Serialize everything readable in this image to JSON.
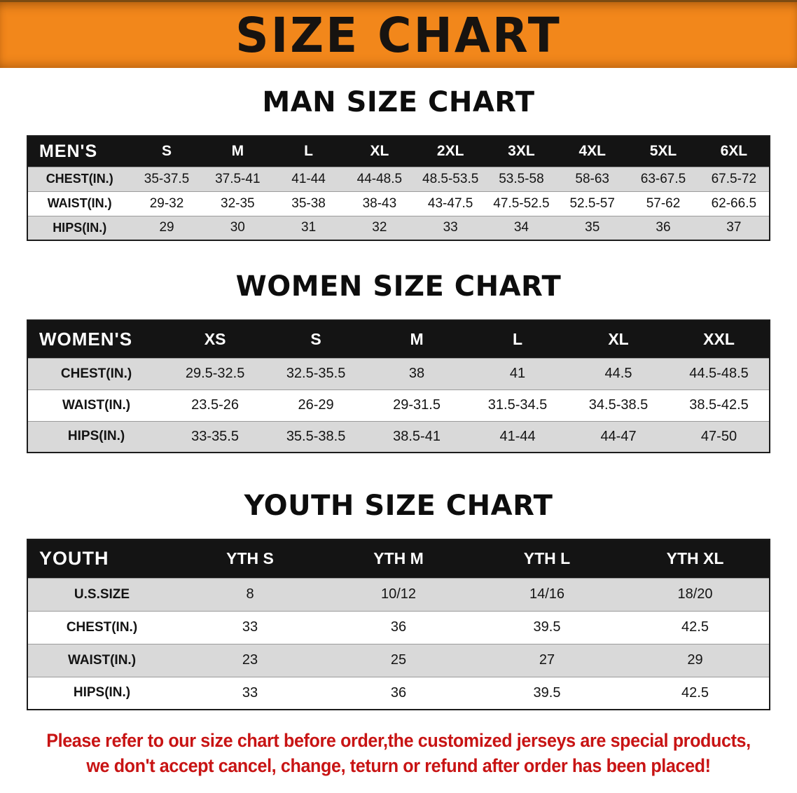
{
  "banner": {
    "title": "SIZE CHART"
  },
  "colors": {
    "banner_orange": "#F2871B",
    "header_bg": "#141414",
    "stripe_gray": "#D9D9D9",
    "disclaimer_red": "#C81414"
  },
  "chart_data": [
    {
      "type": "table",
      "title": "MAN SIZE CHART",
      "columns": [
        "MEN'S",
        "S",
        "M",
        "L",
        "XL",
        "2XL",
        "3XL",
        "4XL",
        "5XL",
        "6XL"
      ],
      "rows": [
        [
          "CHEST(IN.)",
          "35-37.5",
          "37.5-41",
          "41-44",
          "44-48.5",
          "48.5-53.5",
          "53.5-58",
          "58-63",
          "63-67.5",
          "67.5-72"
        ],
        [
          "WAIST(IN.)",
          "29-32",
          "32-35",
          "35-38",
          "38-43",
          "43-47.5",
          "47.5-52.5",
          "52.5-57",
          "57-62",
          "62-66.5"
        ],
        [
          "HIPS(IN.)",
          "29",
          "30",
          "31",
          "32",
          "33",
          "34",
          "35",
          "36",
          "37"
        ]
      ]
    },
    {
      "type": "table",
      "title": "WOMEN SIZE CHART",
      "columns": [
        "WOMEN'S",
        "XS",
        "S",
        "M",
        "L",
        "XL",
        "XXL"
      ],
      "rows": [
        [
          "CHEST(IN.)",
          "29.5-32.5",
          "32.5-35.5",
          "38",
          "41",
          "44.5",
          "44.5-48.5"
        ],
        [
          "WAIST(IN.)",
          "23.5-26",
          "26-29",
          "29-31.5",
          "31.5-34.5",
          "34.5-38.5",
          "38.5-42.5"
        ],
        [
          "HIPS(IN.)",
          "33-35.5",
          "35.5-38.5",
          "38.5-41",
          "41-44",
          "44-47",
          "47-50"
        ]
      ]
    },
    {
      "type": "table",
      "title": "YOUTH SIZE CHART",
      "columns": [
        "YOUTH",
        "YTH S",
        "YTH M",
        "YTH L",
        "YTH XL"
      ],
      "rows": [
        [
          "U.S.SIZE",
          "8",
          "10/12",
          "14/16",
          "18/20"
        ],
        [
          "CHEST(IN.)",
          "33",
          "36",
          "39.5",
          "42.5"
        ],
        [
          "WAIST(IN.)",
          "23",
          "25",
          "27",
          "29"
        ],
        [
          "HIPS(IN.)",
          "33",
          "36",
          "39.5",
          "42.5"
        ]
      ]
    }
  ],
  "disclaimer": {
    "line1": "Please refer to our size chart before order,the customized jerseys are special products,",
    "line2": "we don't accept cancel, change, teturn or refund after order has been placed!"
  }
}
